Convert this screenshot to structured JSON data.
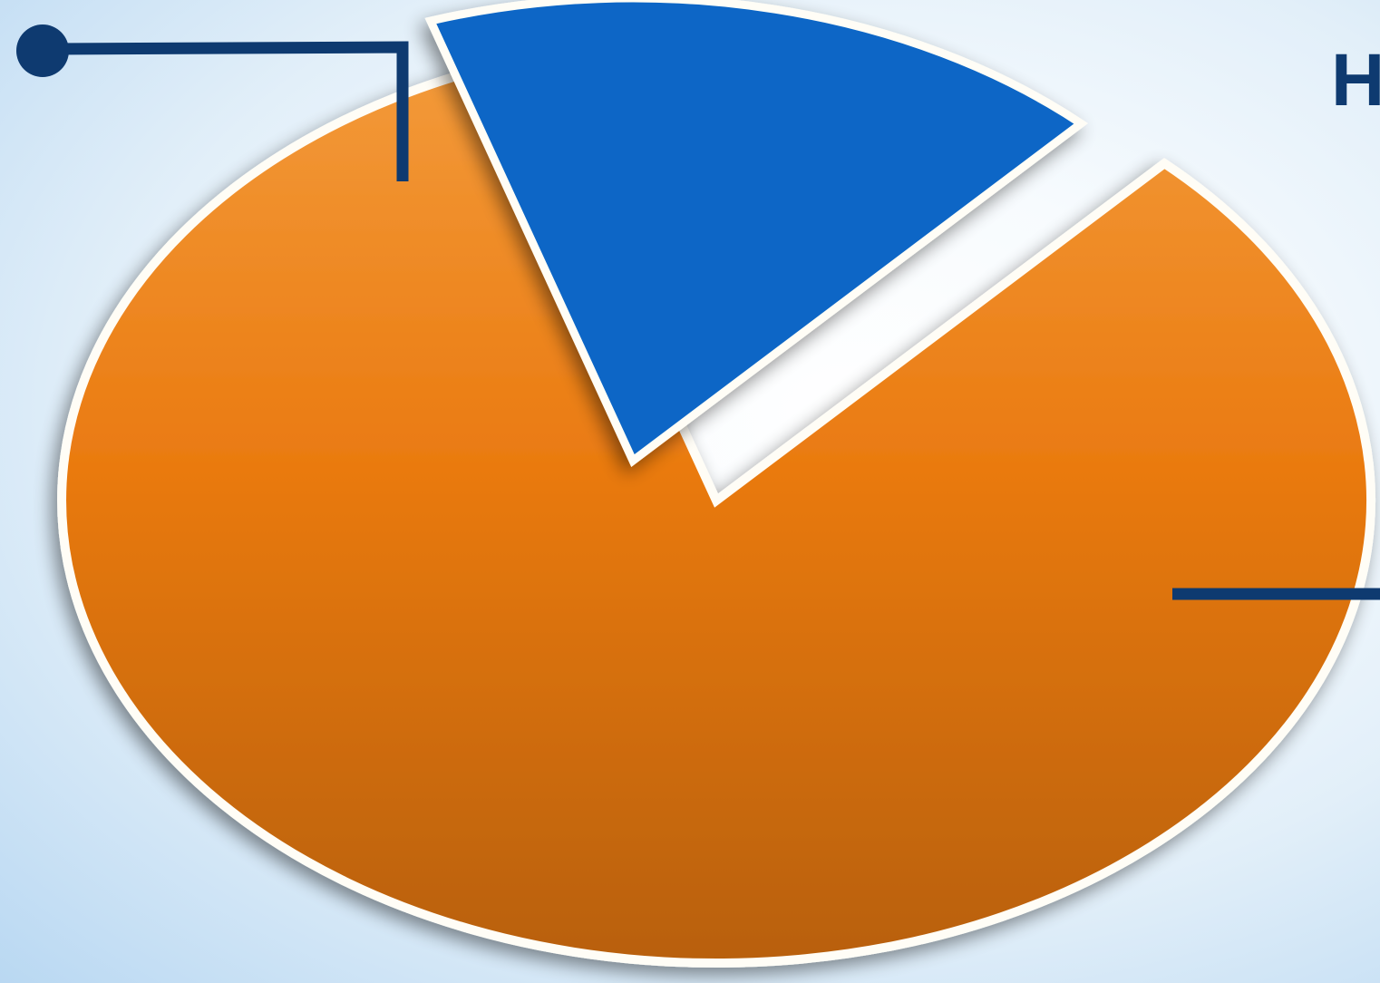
{
  "colors": {
    "blue_slice": "#0866c6",
    "orange_slice_top": "#f39a3a",
    "orange_slice_mid": "#ea7a10",
    "orange_slice_bottom": "#b8600c",
    "leader_line": "#0e3a70",
    "edge": "#fffdf6",
    "heading_text": "#0e3a70"
  },
  "partial_heading": {
    "visible_text": "H"
  },
  "chart_data": {
    "type": "pie",
    "style": "3d-perspective, exploded slice",
    "title": "",
    "series": [
      {
        "values": [
          17,
          83
        ]
      }
    ],
    "slices": [
      {
        "value": 17,
        "color_key": "blue_slice",
        "exploded": true,
        "callout": "top-left"
      },
      {
        "value": 83,
        "color_key": "orange_slice",
        "exploded": false,
        "callout": "right"
      }
    ],
    "legend": "none",
    "grid": false
  }
}
